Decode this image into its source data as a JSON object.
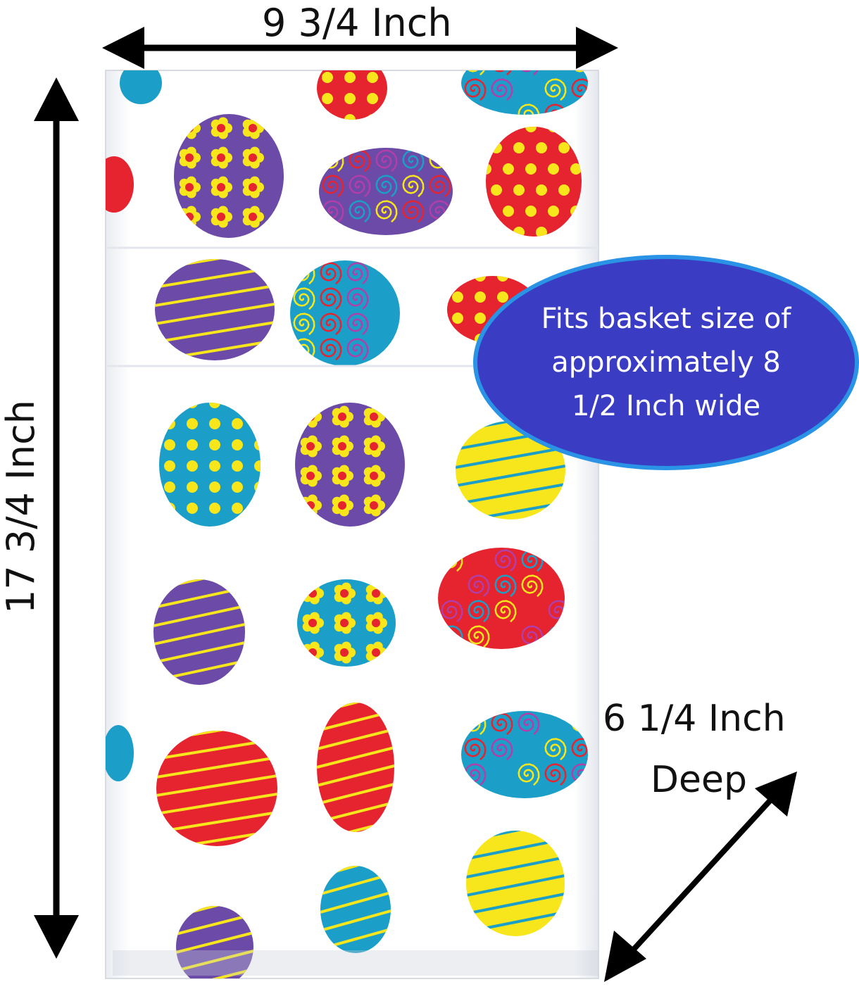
{
  "dimensions": {
    "width_label": "9 3/4 Inch",
    "height_label": "17 3/4 Inch",
    "depth_label_line1": "6 1/4 Inch",
    "depth_label_line2": "Deep"
  },
  "callout": {
    "text": "Fits basket size of\napproximately 8\n1/2 Inch wide"
  },
  "colors": {
    "callout_fill": "#3a3dc4",
    "callout_border": "#2a93e6",
    "egg_red": "#e5242f",
    "egg_purple": "#6b4aa8",
    "egg_blue": "#1b9fc9",
    "egg_yellow": "#f7e61b"
  },
  "icons": [
    "double-arrow-icon",
    "easter-egg-icon"
  ]
}
